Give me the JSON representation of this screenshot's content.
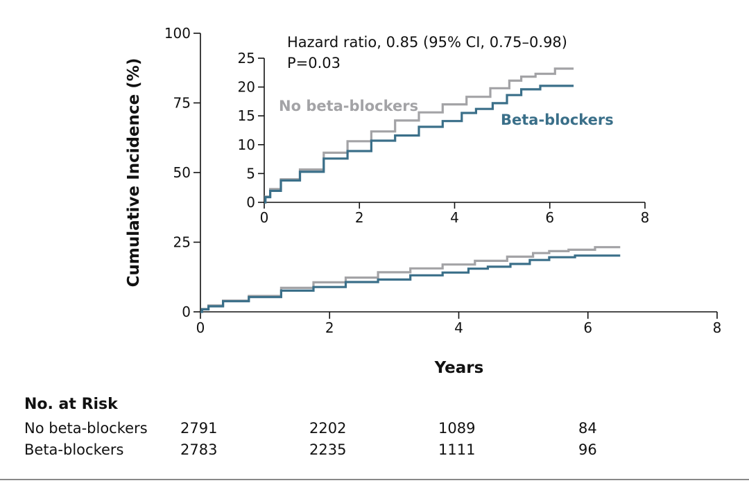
{
  "chart_data": [
    {
      "type": "line",
      "role": "main",
      "xlabel": "Years",
      "ylabel": "Cumulative Incidence (%)",
      "xlim": [
        0,
        8
      ],
      "ylim": [
        0,
        100
      ],
      "xticks": [
        "0",
        "2",
        "4",
        "6",
        "8"
      ],
      "yticks": [
        "0",
        "25",
        "50",
        "75",
        "100"
      ],
      "series": [
        {
          "name": "No beta-blockers",
          "color": "#a3a3a6",
          "x": [
            0,
            0.05,
            0.2,
            0.5,
            1.0,
            1.5,
            2.0,
            2.5,
            3.0,
            3.5,
            4.0,
            4.5,
            5.0,
            5.3,
            5.5,
            5.9,
            6.1,
            6.12,
            6.5
          ],
          "y": [
            0,
            1.0,
            2.3,
            4.0,
            5.7,
            8.6,
            10.6,
            12.3,
            14.2,
            15.6,
            17.0,
            18.3,
            19.8,
            21.1,
            21.8,
            22.3,
            22.3,
            23.2,
            23.2
          ]
        },
        {
          "name": "Beta-blockers",
          "color": "#3a6f89",
          "x": [
            0,
            0.05,
            0.2,
            0.5,
            1.0,
            1.5,
            2.0,
            2.5,
            3.0,
            3.5,
            4.0,
            4.3,
            4.6,
            5.0,
            5.2,
            5.6,
            6.0,
            6.5
          ],
          "y": [
            0,
            0.9,
            2.0,
            3.8,
            5.3,
            7.6,
            8.9,
            10.7,
            11.6,
            13.1,
            14.1,
            15.5,
            16.2,
            17.2,
            18.6,
            19.6,
            20.2,
            20.2
          ]
        }
      ]
    },
    {
      "type": "line",
      "role": "inset",
      "xlim": [
        0,
        8
      ],
      "ylim": [
        0,
        25
      ],
      "xticks": [
        "0",
        "2",
        "4",
        "6",
        "8"
      ],
      "yticks": [
        "0",
        "5",
        "10",
        "15",
        "20",
        "25"
      ],
      "annotation_line1": "Hazard ratio, 0.85 (95% CI, 0.75–0.98)",
      "annotation_line2": "P=0.03",
      "series_label_1": "No beta-blockers",
      "series_label_2": "Beta-blockers"
    }
  ],
  "risk_table": {
    "title": "No. at Risk",
    "rows": [
      {
        "label": "No beta-blockers",
        "values": [
          "2791",
          "2202",
          "1089",
          "84"
        ]
      },
      {
        "label": "Beta-blockers",
        "values": [
          "2783",
          "2235",
          "1111",
          "96"
        ]
      }
    ]
  }
}
